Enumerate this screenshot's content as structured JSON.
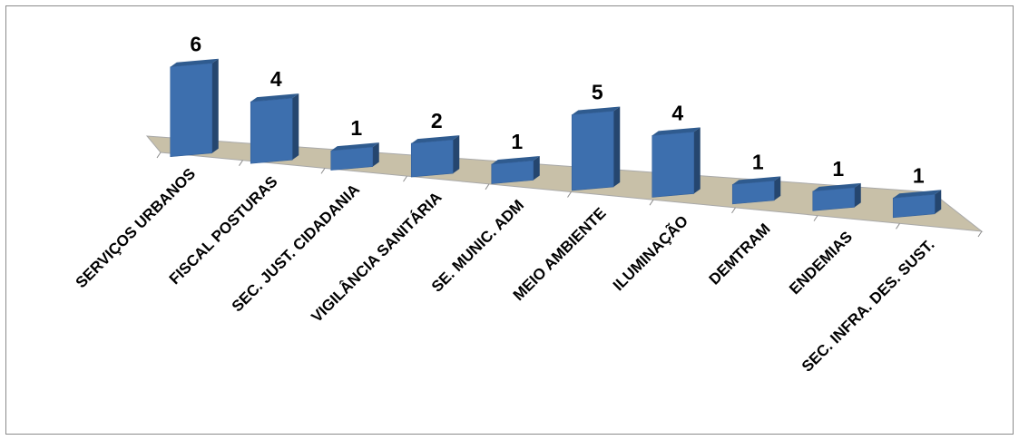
{
  "chart_data": {
    "type": "bar",
    "title": "",
    "xlabel": "",
    "ylabel": "",
    "categories": [
      "SERVIÇOS URBANOS",
      "FISCAL POSTURAS",
      "SEC. JUST. CIDADANIA",
      "VIGILÂNCIA SANITÁRIA",
      "SE. MUNIC. ADM",
      "MEIO AMBIENTE",
      "ILUMINAÇÃO",
      "DEMTRAM",
      "ENDEMIAS",
      "SEC. INFRA. DES. SUST."
    ],
    "values": [
      6,
      4,
      1,
      2,
      1,
      5,
      4,
      1,
      1,
      1
    ],
    "ylim": [
      0,
      6
    ],
    "grid": false,
    "legend": "none",
    "style": "3d-column",
    "colors": {
      "bar_front": "#3d6fae",
      "bar_side": "#25466f",
      "bar_top": "#2f5b8f",
      "floor": "#c8c0a8",
      "floor_edge": "#a9a9a9"
    }
  }
}
